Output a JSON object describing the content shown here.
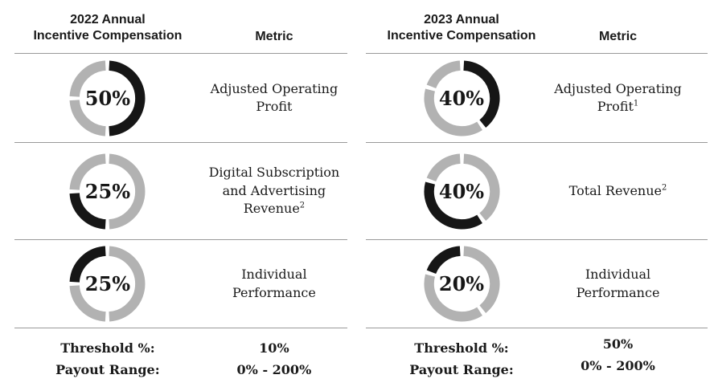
{
  "page": {
    "background": "#ffffff"
  },
  "colors": {
    "active_segment": "#161616",
    "inactive_segment": "#b2b2b2",
    "divider": "#999999",
    "text": "#1a1a1a"
  },
  "chart_data": [
    {
      "type": "pie",
      "title": "2022 Annual Incentive Compensation",
      "categories": [
        "Adjusted Operating Profit",
        "Digital Subscription and Advertising Revenue",
        "Individual Performance"
      ],
      "values": [
        50,
        25,
        25
      ],
      "labels": [
        "50%",
        "25%",
        "25%"
      ],
      "threshold_pct": "10%",
      "payout_range": "0% - 200%"
    },
    {
      "type": "pie",
      "title": "2023 Annual Incentive Compensation",
      "categories": [
        "Adjusted Operating Profit",
        "Total Revenue",
        "Individual Performance"
      ],
      "values": [
        40,
        40,
        20
      ],
      "labels": [
        "40%",
        "40%",
        "20%"
      ],
      "threshold_pct": "50%",
      "payout_range": "0% - 200%"
    }
  ],
  "tables": [
    {
      "id": "2022",
      "title_lines": [
        "2022 Annual",
        "Incentive Compensation"
      ],
      "metric_header": "Metric",
      "rows": [
        {
          "weight_label": "50%",
          "weight": 50,
          "segments": [
            [
              0,
              180
            ],
            [
              180,
              270
            ],
            [
              270,
              360
            ]
          ],
          "active": 0,
          "metric_lines": [
            {
              "text": "Adjusted Operating"
            },
            {
              "text": "Profit"
            }
          ]
        },
        {
          "weight_label": "25%",
          "weight": 25,
          "segments": [
            [
              0,
              180
            ],
            [
              180,
              270
            ],
            [
              270,
              360
            ]
          ],
          "active": 1,
          "metric_lines": [
            {
              "text": "Digital Subscription"
            },
            {
              "text": "and Advertising"
            },
            {
              "text": "Revenue",
              "sup": "2"
            }
          ]
        },
        {
          "weight_label": "25%",
          "weight": 25,
          "segments": [
            [
              0,
              180
            ],
            [
              180,
              270
            ],
            [
              270,
              360
            ]
          ],
          "active": 2,
          "metric_lines": [
            {
              "text": "Individual"
            },
            {
              "text": "Performance"
            }
          ]
        }
      ],
      "footer": {
        "threshold_label": "Threshold %:",
        "threshold_value": "10%",
        "payout_label": "Payout Range:",
        "payout_value": "0% - 200%"
      }
    },
    {
      "id": "2023",
      "title_lines": [
        "2023 Annual",
        "Incentive Compensation"
      ],
      "metric_header": "Metric",
      "rows": [
        {
          "weight_label": "40%",
          "weight": 40,
          "segments": [
            [
              0,
              144
            ],
            [
              144,
              288
            ],
            [
              288,
              360
            ]
          ],
          "active": 0,
          "metric_lines": [
            {
              "text": "Adjusted Operating"
            },
            {
              "text": "Profit",
              "sup": "1"
            }
          ]
        },
        {
          "weight_label": "40%",
          "weight": 40,
          "segments": [
            [
              0,
              144
            ],
            [
              144,
              288
            ],
            [
              288,
              360
            ]
          ],
          "active": 1,
          "metric_lines": [
            {
              "text": "Total Revenue",
              "sup": "2"
            }
          ]
        },
        {
          "weight_label": "20%",
          "weight": 20,
          "segments": [
            [
              0,
              144
            ],
            [
              144,
              288
            ],
            [
              288,
              360
            ]
          ],
          "active": 2,
          "metric_lines": [
            {
              "text": "Individual"
            },
            {
              "text": "Performance"
            }
          ]
        }
      ],
      "footer": {
        "threshold_label": "Threshold %:",
        "threshold_value": "50%",
        "payout_label": "Payout Range:",
        "payout_value": "0% - 200%"
      }
    }
  ]
}
